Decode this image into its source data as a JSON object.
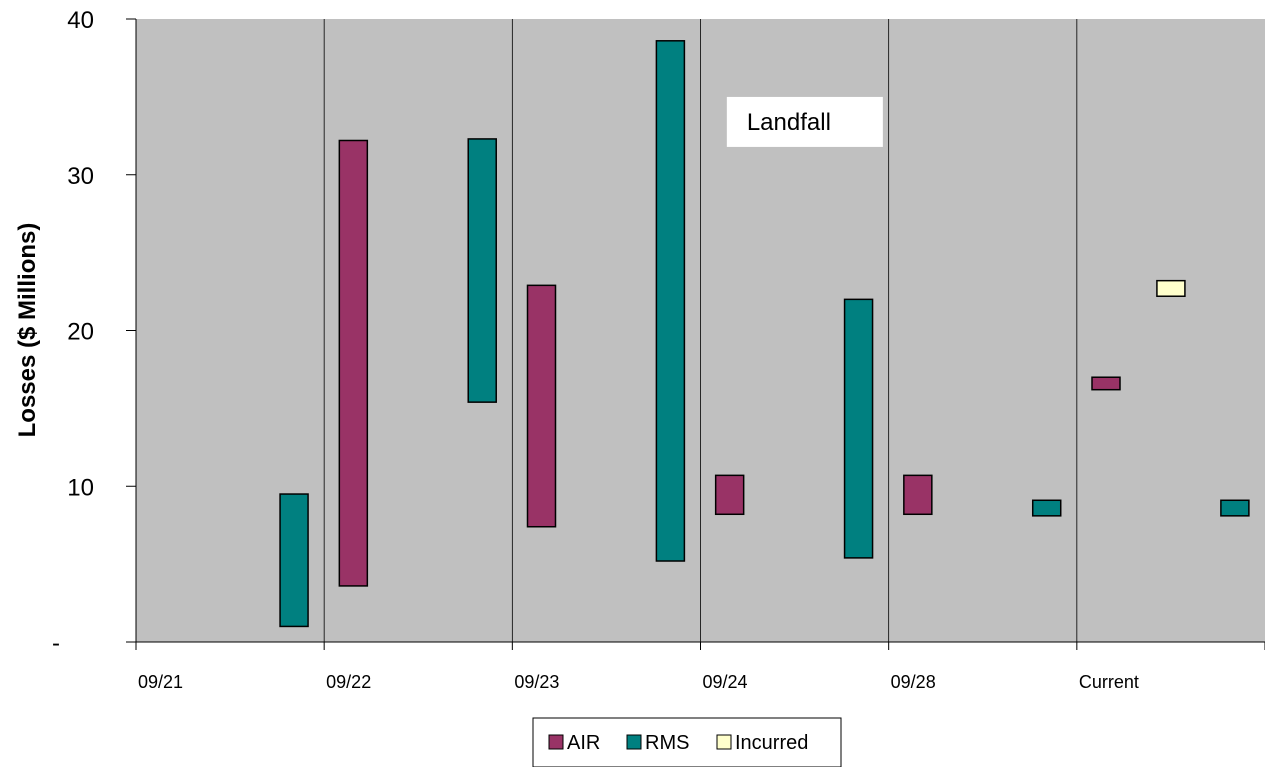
{
  "chart_data": {
    "type": "bar",
    "subtype": "floating-range",
    "title": "",
    "xlabel": "",
    "ylabel": "Losses ($ Millions)",
    "ylim": [
      0,
      40
    ],
    "y_ticks": [
      {
        "value": 0,
        "label": "-"
      },
      {
        "value": 10,
        "label": "10"
      },
      {
        "value": 20,
        "label": "20"
      },
      {
        "value": 30,
        "label": "30"
      },
      {
        "value": 40,
        "label": "40"
      }
    ],
    "categories": [
      "09/21",
      "09/22",
      "09/23",
      "09/24",
      "09/28",
      "Current"
    ],
    "grid": {
      "vertical": true,
      "horizontal": false
    },
    "background_color": "#C0C0C0",
    "series": [
      {
        "name": "AIR",
        "color": "#993366",
        "ranges": [
          {
            "category": "09/22",
            "low": 3.6,
            "high": 32.2
          },
          {
            "category": "09/23",
            "low": 7.4,
            "high": 22.9
          },
          {
            "category": "09/24",
            "low": 8.2,
            "high": 10.7
          },
          {
            "category": "09/28",
            "low": 8.2,
            "high": 10.7
          },
          {
            "category": "Current",
            "low": 16.2,
            "high": 17.0
          }
        ]
      },
      {
        "name": "RMS",
        "color": "#008080",
        "ranges": [
          {
            "category": "09/21",
            "low": 1.0,
            "high": 9.5
          },
          {
            "category": "09/22",
            "low": 15.4,
            "high": 32.3
          },
          {
            "category": "09/23",
            "low": 5.2,
            "high": 38.6
          },
          {
            "category": "09/24",
            "low": 5.4,
            "high": 22.0
          },
          {
            "category": "09/28",
            "low": 8.1,
            "high": 9.1
          },
          {
            "category": "Current",
            "low": 8.1,
            "high": 9.1
          }
        ]
      },
      {
        "name": "Incurred",
        "color": "#FFFFCC",
        "ranges": [
          {
            "category": "Current",
            "low": 22.2,
            "high": 23.2
          }
        ]
      }
    ],
    "annotations": [
      {
        "text": "Landfall",
        "category": "09/24",
        "y": 32.3
      }
    ],
    "legend": {
      "position": "bottom"
    }
  }
}
